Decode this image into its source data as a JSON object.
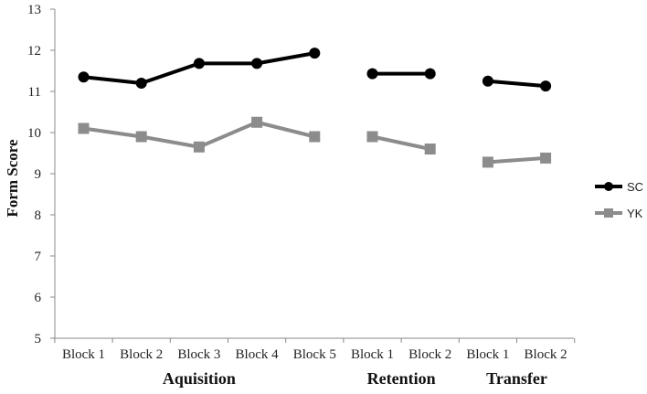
{
  "chart_data": {
    "type": "line",
    "ylabel": "Form Score",
    "xlabel": "",
    "ylim": [
      5,
      13
    ],
    "yticks": [
      5,
      6,
      7,
      8,
      9,
      10,
      11,
      12,
      13
    ],
    "grid": false,
    "legend_position": "right",
    "categories": [
      "Block 1",
      "Block 2",
      "Block 3",
      "Block 4",
      "Block 5",
      "Block 1",
      "Block 2",
      "Block 1",
      "Block 2"
    ],
    "phases": [
      {
        "name": "Aquisition",
        "start": 0,
        "end": 4
      },
      {
        "name": "Retention",
        "start": 5,
        "end": 6
      },
      {
        "name": "Transfer",
        "start": 7,
        "end": 8
      }
    ],
    "series": [
      {
        "name": "SC",
        "color": "#000000",
        "marker": "circle",
        "values": [
          11.35,
          11.2,
          11.68,
          11.68,
          11.93,
          11.43,
          11.43,
          11.25,
          11.13
        ]
      },
      {
        "name": "YK",
        "color": "#8c8c8c",
        "marker": "square",
        "values": [
          10.1,
          9.9,
          9.65,
          10.25,
          9.9,
          9.9,
          9.6,
          9.28,
          9.38
        ]
      }
    ]
  }
}
